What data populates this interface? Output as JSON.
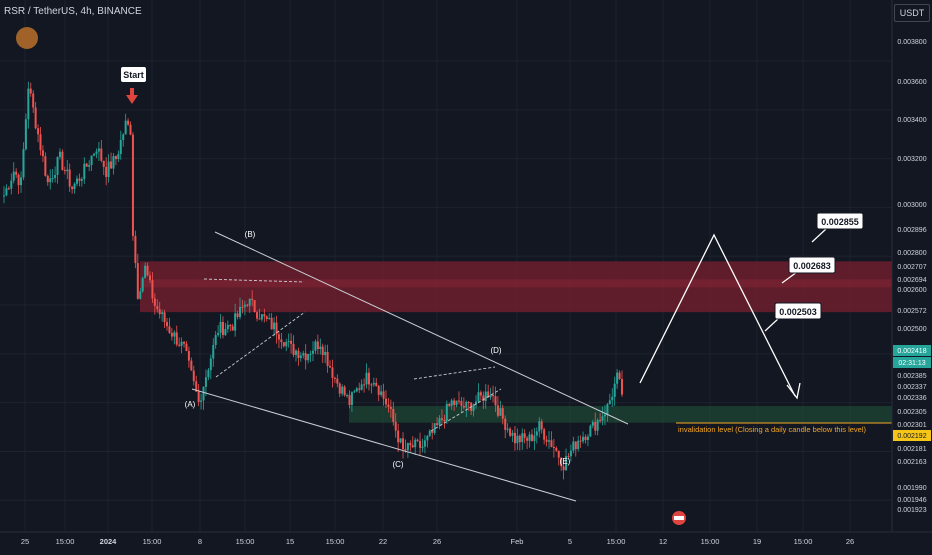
{
  "header": {
    "symbol_title": "RSR / TetherUS, 4h, BINANCE",
    "currency": "USDT"
  },
  "colors": {
    "background": "#131722",
    "grid": "#1e222d",
    "bull": "#26a69a",
    "bear": "#ef5350",
    "resistance_zone": "#7a1f2e",
    "support_zone": "#1f4a34",
    "text": "#d1d4dc",
    "invalidation": "#f5a623",
    "current_price_tag": "#26a69a",
    "low_tag": "#f5c518"
  },
  "chart_data": {
    "type": "candlestick",
    "price_axis": [
      "0.003800",
      "0.003600",
      "0.003400",
      "0.003200",
      "0.003000",
      "0.002896",
      "0.002800",
      "0.002707",
      "0.002694",
      "0.002600",
      "0.002572",
      "0.002500",
      "0.002418",
      "02:31:13",
      "0.002385",
      "0.002337",
      "0.002336",
      "0.002305",
      "0.002301",
      "0.002192",
      "0.002181",
      "0.002163",
      "0.001990",
      "0.001946",
      "0.001923"
    ],
    "time_axis": [
      "25",
      "15:00",
      "2024",
      "15:00",
      "8",
      "15:00",
      "15",
      "15:00",
      "22",
      "26",
      "Feb",
      "5",
      "15:00",
      "12",
      "15:00",
      "19",
      "15:00",
      "26"
    ],
    "ylim": [
      0.00187,
      0.00405
    ],
    "waypoints": [
      [
        0,
        0.00325
      ],
      [
        4,
        0.00335
      ],
      [
        7,
        0.0033
      ],
      [
        10,
        0.0037
      ],
      [
        14,
        0.0035
      ],
      [
        18,
        0.0033
      ],
      [
        23,
        0.0034
      ],
      [
        28,
        0.00328
      ],
      [
        33,
        0.00335
      ],
      [
        38,
        0.00345
      ],
      [
        42,
        0.00335
      ],
      [
        46,
        0.0034
      ],
      [
        50,
        0.00354
      ],
      [
        52,
        0.00352
      ],
      [
        53,
        0.0031
      ],
      [
        55,
        0.00285
      ],
      [
        58,
        0.00295
      ],
      [
        62,
        0.0028
      ],
      [
        68,
        0.0027
      ],
      [
        74,
        0.00262
      ],
      [
        80,
        0.0024
      ],
      [
        84,
        0.00255
      ],
      [
        88,
        0.0027
      ],
      [
        94,
        0.00272
      ],
      [
        100,
        0.00282
      ],
      [
        106,
        0.00275
      ],
      [
        112,
        0.0027
      ],
      [
        118,
        0.00262
      ],
      [
        124,
        0.0026
      ],
      [
        130,
        0.00265
      ],
      [
        136,
        0.0025
      ],
      [
        142,
        0.0024
      ],
      [
        148,
        0.0025
      ],
      [
        152,
        0.0025
      ],
      [
        158,
        0.00238
      ],
      [
        164,
        0.0022
      ],
      [
        168,
        0.00222
      ],
      [
        172,
        0.00222
      ],
      [
        178,
        0.0023
      ],
      [
        184,
        0.0024
      ],
      [
        190,
        0.00238
      ],
      [
        196,
        0.00242
      ],
      [
        200,
        0.00245
      ],
      [
        204,
        0.00235
      ],
      [
        210,
        0.00225
      ],
      [
        216,
        0.00225
      ],
      [
        220,
        0.0023
      ],
      [
        226,
        0.00222
      ],
      [
        230,
        0.00215
      ],
      [
        236,
        0.00225
      ],
      [
        242,
        0.0023
      ],
      [
        248,
        0.00238
      ],
      [
        252,
        0.0025
      ],
      [
        254,
        0.00244
      ]
    ],
    "resistance_zone": {
      "low": 0.002771,
      "high": 0.002979
    },
    "support_zone": {
      "low": 0.002318,
      "high": 0.002386
    },
    "wave_labels": [
      "(A)",
      "(B)",
      "(C)",
      "(D)",
      "(E)"
    ],
    "projection_targets": [
      "0.002855",
      "0.002683",
      "0.002503"
    ],
    "invalidation_level": {
      "price": 0.002301,
      "label": "invalidation level (Closing a daily candle below this level)"
    },
    "start_label": "Start",
    "current_price": "0.002418",
    "countdown": "02:31:13"
  }
}
